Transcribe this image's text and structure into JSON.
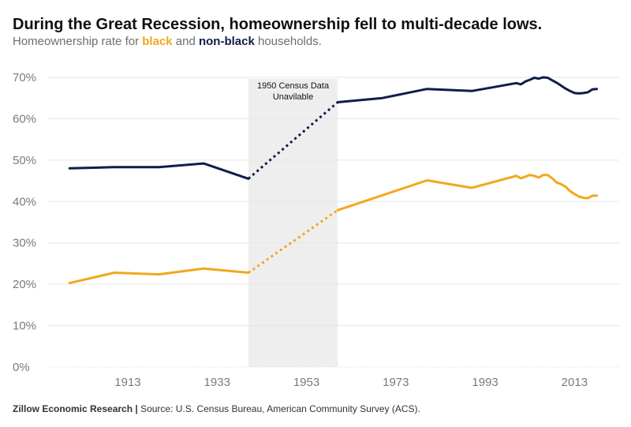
{
  "header": {
    "title": "During the Great Recession, homeownership fell to multi-decade lows.",
    "subtitle_pre": "Homeownership rate for ",
    "subtitle_black": "black",
    "subtitle_mid": " and ",
    "subtitle_nonblack": "non-black",
    "subtitle_post": " households."
  },
  "footer": {
    "org": "Zillow Economic Research",
    "separator": " | ",
    "source": "Source:  U.S. Census Bureau, American Community Survey (ACS)."
  },
  "chart_data": {
    "type": "line",
    "title": "During the Great Recession, homeownership fell to multi-decade lows.",
    "subtitle": "Homeownership rate for black and non-black households.",
    "ylim": [
      0,
      70
    ],
    "xlim": [
      1895,
      2023
    ],
    "yticks": [
      0,
      10,
      20,
      30,
      40,
      50,
      60,
      70
    ],
    "ytick_labels": [
      "0%",
      "10%",
      "20%",
      "30%",
      "40%",
      "50%",
      "60%",
      "70%"
    ],
    "xticks": [
      1913,
      1933,
      1953,
      1973,
      1993,
      2013
    ],
    "xtick_labels": [
      "1913",
      "1933",
      "1953",
      "1973",
      "1993",
      "2013"
    ],
    "grid": "horizontal",
    "legend": "in subtitle",
    "colors": {
      "black": "#f0a81e",
      "nonblack": "#0f1d4a",
      "shade": "#eeeeee",
      "grid": "#e6e6e6"
    },
    "shaded_region": {
      "x": [
        1940,
        1960
      ],
      "label_line1": "1950 Census Data",
      "label_line2": "Unavilable"
    },
    "series": [
      {
        "name": "non-black",
        "color": "#0f1d4a",
        "points": [
          [
            1900,
            48.0
          ],
          [
            1910,
            48.3
          ],
          [
            1920,
            48.3
          ],
          [
            1930,
            49.2
          ],
          [
            1940,
            45.5
          ],
          [
            1960,
            64.0
          ],
          [
            1970,
            65.0
          ],
          [
            1980,
            67.2
          ],
          [
            1990,
            66.7
          ],
          [
            2000,
            68.6
          ],
          [
            2001,
            68.3
          ],
          [
            2002,
            69.0
          ],
          [
            2003,
            69.4
          ],
          [
            2004,
            69.9
          ],
          [
            2005,
            69.7
          ],
          [
            2006,
            70.0
          ],
          [
            2007,
            69.9
          ],
          [
            2008,
            69.3
          ],
          [
            2009,
            68.7
          ],
          [
            2010,
            68.0
          ],
          [
            2011,
            67.3
          ],
          [
            2012,
            66.7
          ],
          [
            2013,
            66.2
          ],
          [
            2014,
            66.1
          ],
          [
            2015,
            66.2
          ],
          [
            2016,
            66.4
          ],
          [
            2017,
            67.1
          ],
          [
            2018,
            67.2
          ]
        ]
      },
      {
        "name": "black",
        "color": "#f0a81e",
        "points": [
          [
            1900,
            20.3
          ],
          [
            1910,
            22.8
          ],
          [
            1920,
            22.4
          ],
          [
            1930,
            23.8
          ],
          [
            1940,
            22.8
          ],
          [
            1960,
            37.9
          ],
          [
            1980,
            45.1
          ],
          [
            1990,
            43.3
          ],
          [
            2000,
            46.2
          ],
          [
            2001,
            45.6
          ],
          [
            2002,
            46.0
          ],
          [
            2003,
            46.4
          ],
          [
            2004,
            46.2
          ],
          [
            2005,
            45.8
          ],
          [
            2006,
            46.4
          ],
          [
            2007,
            46.4
          ],
          [
            2008,
            45.6
          ],
          [
            2009,
            44.6
          ],
          [
            2010,
            44.2
          ],
          [
            2011,
            43.6
          ],
          [
            2012,
            42.5
          ],
          [
            2013,
            41.8
          ],
          [
            2014,
            41.2
          ],
          [
            2015,
            40.9
          ],
          [
            2016,
            40.8
          ],
          [
            2017,
            41.4
          ],
          [
            2018,
            41.4
          ]
        ]
      }
    ]
  }
}
